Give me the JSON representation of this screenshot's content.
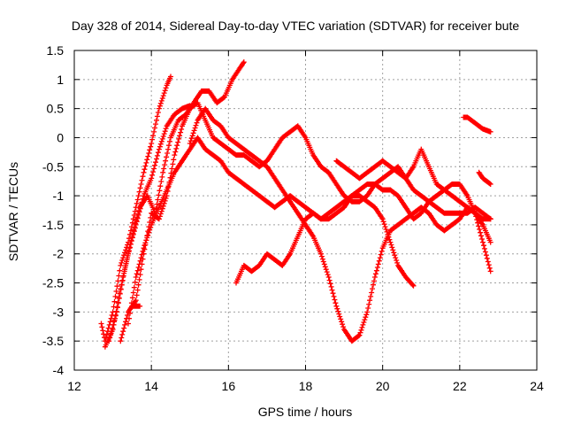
{
  "chart_data": {
    "type": "scatter",
    "title": "Day 328 of 2014, Sidereal Day-to-day VTEC variation (SDTVAR) for receiver bute",
    "xlabel": "GPS time / hours",
    "ylabel": "SDTVAR / TECUs",
    "xlim": [
      12,
      24
    ],
    "ylim": [
      -4,
      1.5
    ],
    "xticks": [
      "12",
      "14",
      "16",
      "18",
      "20",
      "22",
      "24"
    ],
    "yticks": [
      "1.5",
      "1",
      "0.5",
      "0",
      "-0.5",
      "-1",
      "-1.5",
      "-2",
      "-2.5",
      "-3",
      "-3.5",
      "-4"
    ],
    "grid": true,
    "marker": "plus",
    "color": "#ff0000",
    "series": [
      {
        "x": [
          12.7,
          12.8,
          13.0,
          13.2,
          13.4,
          13.6,
          13.8,
          14.0,
          14.2,
          14.4,
          14.5
        ],
        "y": [
          -3.2,
          -3.5,
          -3.0,
          -2.2,
          -1.8,
          -1.2,
          -0.6,
          -0.1,
          0.5,
          0.9,
          1.05
        ]
      },
      {
        "x": [
          12.8,
          13.0,
          13.2,
          13.4,
          13.6,
          13.8,
          14.0,
          14.2,
          14.4,
          14.6,
          14.8,
          15.0
        ],
        "y": [
          -3.6,
          -3.3,
          -2.6,
          -2.0,
          -1.5,
          -1.0,
          -0.7,
          -0.2,
          0.2,
          0.4,
          0.5,
          0.55
        ]
      },
      {
        "x": [
          12.9,
          13.1,
          13.3,
          13.5,
          13.7,
          13.9,
          14.1,
          14.3,
          14.5,
          14.7,
          14.9,
          15.1,
          15.3,
          15.5,
          15.7,
          15.9,
          16.1,
          16.3,
          16.4
        ],
        "y": [
          -3.5,
          -3.0,
          -2.3,
          -1.7,
          -1.2,
          -1.0,
          -1.3,
          -0.6,
          0.0,
          0.3,
          0.4,
          0.6,
          0.8,
          0.8,
          0.6,
          0.7,
          1.0,
          1.2,
          1.3
        ]
      },
      {
        "x": [
          13.2,
          13.4,
          13.6,
          13.8,
          14.0,
          14.2,
          14.4,
          14.6,
          14.8,
          15.0,
          15.2,
          15.4,
          15.6,
          15.8,
          16.0,
          16.2,
          16.4,
          16.6,
          16.8,
          17.0,
          17.2,
          17.4,
          17.6,
          17.8,
          18.0,
          18.2,
          18.4,
          18.6,
          18.8,
          19.0,
          19.2,
          19.4,
          19.6,
          19.8,
          20.0,
          20.2,
          20.4,
          20.6,
          20.8,
          21.0,
          21.2,
          21.4,
          21.6,
          21.8,
          22.0,
          22.2,
          22.4,
          22.6,
          22.8
        ],
        "y": [
          -3.5,
          -3.0,
          -2.8,
          -2.0,
          -1.3,
          -1.4,
          -1.0,
          -0.3,
          0.2,
          0.5,
          0.6,
          0.3,
          0.0,
          -0.1,
          -0.2,
          -0.3,
          -0.3,
          -0.4,
          -0.5,
          -0.4,
          -0.2,
          0.0,
          0.1,
          0.2,
          0.0,
          -0.3,
          -0.5,
          -0.6,
          -0.8,
          -1.0,
          -1.1,
          -1.1,
          -1.0,
          -0.8,
          -0.7,
          -0.6,
          -0.5,
          -0.7,
          -0.9,
          -1.0,
          -1.1,
          -1.2,
          -1.3,
          -1.3,
          -1.3,
          -1.3,
          -1.2,
          -1.3,
          -1.4
        ]
      },
      {
        "x": [
          13.4,
          13.6,
          13.8,
          14.0,
          14.2,
          14.4,
          14.6,
          14.8,
          15.0,
          15.2,
          15.4,
          15.6,
          15.8,
          16.0,
          16.2,
          16.4,
          16.6,
          16.8,
          17.0,
          17.2,
          17.4,
          17.6,
          17.8,
          18.0,
          18.2,
          18.4,
          18.6,
          18.8,
          19.0,
          19.2,
          19.4,
          19.6,
          19.8,
          20.0,
          20.2,
          20.4,
          20.6,
          20.8,
          21.0,
          21.2,
          21.4,
          21.6,
          21.8,
          22.0,
          22.2,
          22.4,
          22.6,
          22.8
        ],
        "y": [
          -3.2,
          -2.4,
          -1.9,
          -1.5,
          -1.2,
          -0.9,
          -0.6,
          -0.4,
          -0.2,
          0.0,
          -0.2,
          -0.3,
          -0.4,
          -0.6,
          -0.7,
          -0.8,
          -0.9,
          -1.0,
          -1.1,
          -1.2,
          -1.1,
          -1.0,
          -1.1,
          -1.2,
          -1.3,
          -1.4,
          -1.4,
          -1.3,
          -1.2,
          -1.0,
          -0.9,
          -0.8,
          -0.8,
          -0.9,
          -0.9,
          -1.0,
          -1.2,
          -1.4,
          -1.3,
          -1.1,
          -1.0,
          -0.9,
          -0.8,
          -0.8,
          -1.0,
          -1.3,
          -1.8,
          -2.3
        ]
      },
      {
        "x": [
          13.5,
          13.7
        ],
        "y": [
          -2.9,
          -2.9
        ]
      },
      {
        "x": [
          15.0,
          15.2,
          15.4,
          15.6,
          15.8,
          16.0,
          16.2,
          16.4,
          16.6,
          16.8,
          17.0,
          17.2,
          17.4,
          17.6,
          17.8,
          18.0,
          18.2,
          18.4,
          18.6,
          18.8,
          19.0,
          19.2,
          19.4,
          19.6,
          19.8,
          20.0,
          20.2,
          20.4,
          20.6,
          20.8,
          21.0,
          21.2,
          21.4,
          21.6,
          21.8,
          22.0,
          22.2,
          22.4,
          22.6,
          22.8
        ],
        "y": [
          -0.1,
          0.3,
          0.5,
          0.3,
          0.2,
          0.0,
          -0.1,
          -0.2,
          -0.3,
          -0.4,
          -0.5,
          -0.7,
          -0.9,
          -1.1,
          -1.3,
          -1.5,
          -1.7,
          -2.0,
          -2.4,
          -2.9,
          -3.3,
          -3.5,
          -3.4,
          -3.0,
          -2.4,
          -1.9,
          -1.6,
          -1.5,
          -1.4,
          -1.3,
          -1.2,
          -1.3,
          -1.5,
          -1.6,
          -1.5,
          -1.4,
          -1.2,
          -1.3,
          -1.5,
          -1.8
        ]
      },
      {
        "x": [
          16.2,
          16.4,
          16.6,
          16.8,
          17.0,
          17.2,
          17.4,
          17.6,
          17.8,
          18.0,
          18.2,
          18.4,
          18.6,
          18.8,
          19.0,
          19.2,
          19.4,
          19.6,
          19.8,
          20.0,
          20.2,
          20.4,
          20.6,
          20.8
        ],
        "y": [
          -2.5,
          -2.2,
          -2.3,
          -2.2,
          -2.0,
          -2.1,
          -2.2,
          -2.0,
          -1.7,
          -1.4,
          -1.3,
          -1.4,
          -1.3,
          -1.2,
          -1.1,
          -1.0,
          -1.0,
          -1.1,
          -1.2,
          -1.4,
          -1.8,
          -2.2,
          -2.4,
          -2.55
        ]
      },
      {
        "x": [
          18.8,
          19.0,
          19.2,
          19.4,
          19.6,
          19.8,
          20.0,
          20.2,
          20.4,
          20.6,
          20.8,
          21.0,
          21.2,
          21.4,
          21.6,
          21.8,
          22.0,
          22.2,
          22.4,
          22.6,
          22.8
        ],
        "y": [
          -0.4,
          -0.5,
          -0.6,
          -0.7,
          -0.6,
          -0.5,
          -0.4,
          -0.5,
          -0.6,
          -0.7,
          -0.5,
          -0.2,
          -0.5,
          -0.8,
          -0.9,
          -1.0,
          -1.1,
          -1.2,
          -1.3,
          -1.4,
          -1.4
        ]
      },
      {
        "x": [
          22.1,
          22.2,
          22.4,
          22.6,
          22.8
        ],
        "y": [
          0.35,
          0.35,
          0.25,
          0.15,
          0.1
        ]
      },
      {
        "x": [
          22.5,
          22.6,
          22.7,
          22.8
        ],
        "y": [
          -0.6,
          -0.7,
          -0.75,
          -0.8
        ]
      }
    ]
  }
}
